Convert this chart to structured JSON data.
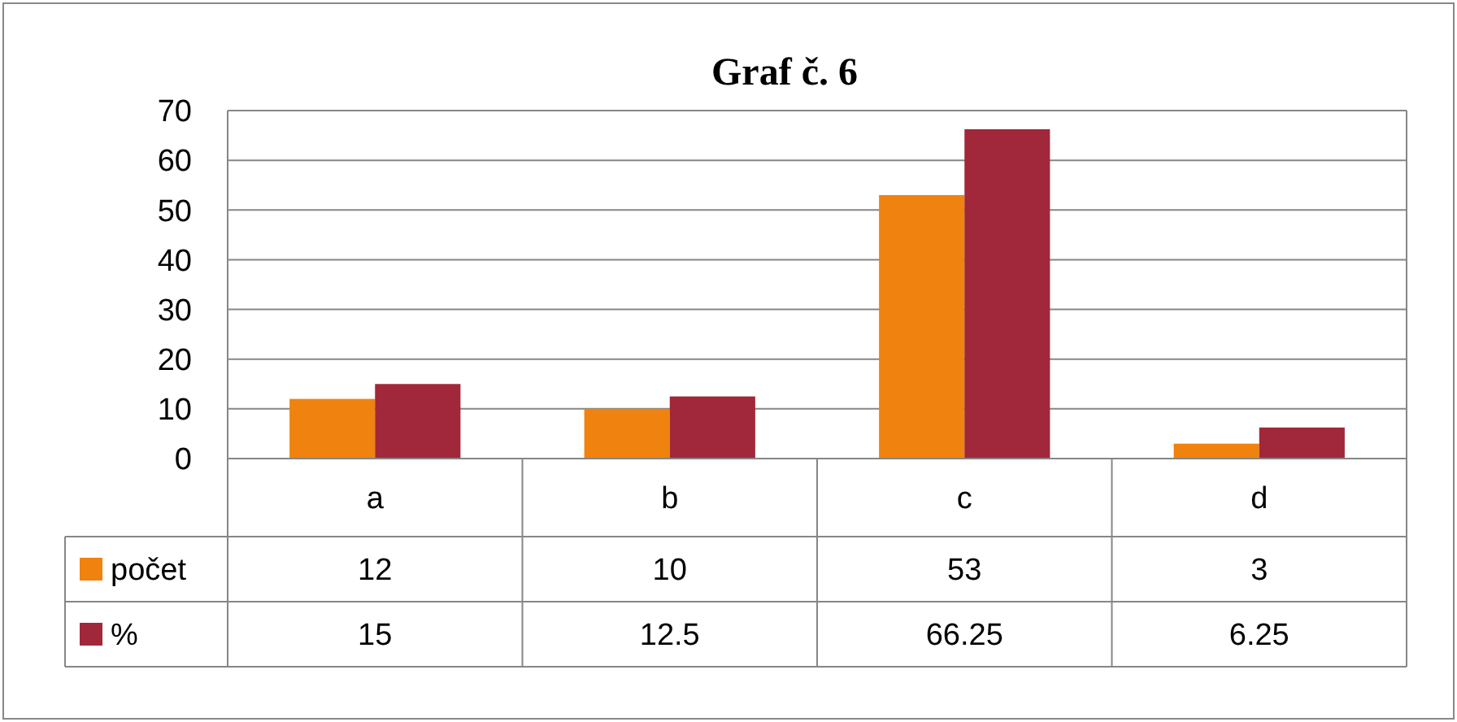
{
  "chart_data": {
    "type": "bar",
    "title": "Graf č. 6",
    "categories": [
      "a",
      "b",
      "c",
      "d"
    ],
    "series": [
      {
        "name": "počet",
        "color": "#f0820f",
        "values": [
          12,
          10,
          53,
          3
        ]
      },
      {
        "name": "%",
        "color": "#a0283a",
        "values": [
          15,
          12.5,
          66.25,
          6.25
        ]
      }
    ],
    "ylim": [
      0,
      70
    ],
    "yticks": [
      0,
      10,
      20,
      30,
      40,
      50,
      60,
      70
    ],
    "grid": "y",
    "legend": "bottom",
    "data_labels": true
  }
}
